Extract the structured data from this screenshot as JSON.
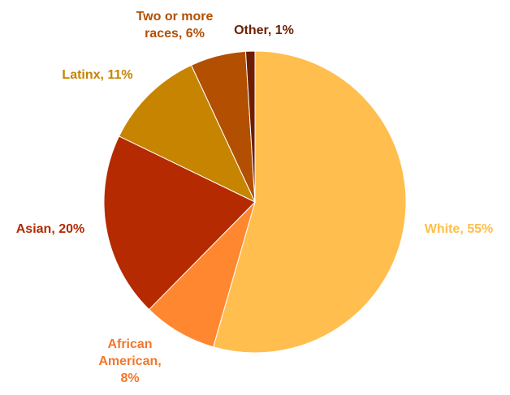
{
  "chart_data": {
    "type": "pie",
    "title": "",
    "slices": [
      {
        "name": "White",
        "value": 55,
        "color": "#FFBE4D",
        "label_lines": [
          "White, 55%"
        ],
        "label_color": "#FFBE4D"
      },
      {
        "name": "African American",
        "value": 8,
        "color": "#FF8730",
        "label_lines": [
          "African",
          "American,",
          "8%"
        ],
        "label_color": "#F4762A"
      },
      {
        "name": "Asian",
        "value": 20,
        "color": "#B52A00",
        "label_lines": [
          "Asian, 20%"
        ],
        "label_color": "#B22A00"
      },
      {
        "name": "Latinx",
        "value": 11,
        "color": "#C68400",
        "label_lines": [
          "Latinx, 11%"
        ],
        "label_color": "#C68400"
      },
      {
        "name": "Two or more races",
        "value": 6,
        "color": "#B24F00",
        "label_lines": [
          "Two or more",
          "races, 6%"
        ],
        "label_color": "#B24F00"
      },
      {
        "name": "Other",
        "value": 1,
        "color": "#6E1E00",
        "label_lines": [
          "Other, 1%"
        ],
        "label_color": "#6E1E00"
      }
    ]
  }
}
